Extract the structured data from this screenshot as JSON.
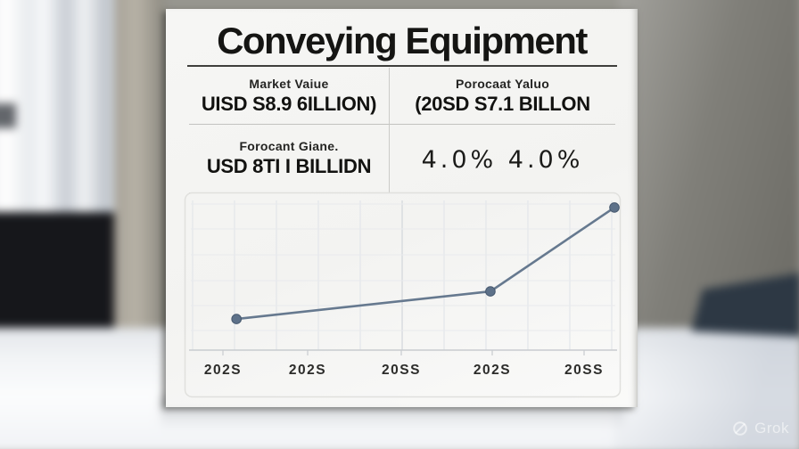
{
  "poster": {
    "title": "Conveying Equipment",
    "stats_table": {
      "cells": [
        {
          "label": "Market Vaiue",
          "value": "UISD S8.9 6ILLION)"
        },
        {
          "label": "Porocaat Yaluo",
          "value": "(20SD S7.1 BILLON"
        },
        {
          "label": "Forocant Giane.",
          "value": "USD 8TI I BILLIDN"
        },
        {
          "label": "",
          "value": "4.0% 4.0%"
        }
      ]
    }
  },
  "chart_data": {
    "type": "line",
    "title": "",
    "xlabel": "",
    "ylabel": "",
    "categories": [
      "202S",
      "202S",
      "20SS",
      "202S",
      "20SS"
    ],
    "grid": true,
    "legend": false,
    "series": [
      {
        "name": "market-value-trend",
        "x_norm": [
          0.104,
          0.706,
          1.0
        ],
        "y_norm": [
          0.213,
          0.402,
          0.976
        ]
      }
    ],
    "line_color": "#66798f",
    "marker_color": "#5d7189",
    "marker_stroke": "#46586e"
  },
  "watermark": {
    "label": "Grok"
  },
  "colors": {
    "poster_bg": "#f5f5f3",
    "title_text": "#151513",
    "accent_line": "#66798f",
    "desk": "#f2f4f6",
    "wall_right": "#6b6a64",
    "cabinet": "#16171b"
  }
}
